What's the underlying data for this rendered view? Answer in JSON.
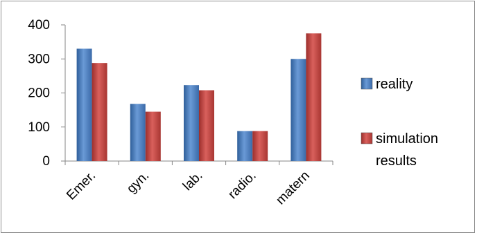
{
  "chart_data": {
    "type": "bar",
    "categories": [
      "Emer.",
      "gyn.",
      "lab.",
      "radio.",
      "matern"
    ],
    "series": [
      {
        "name": "reality",
        "values": [
          330,
          168,
          223,
          88,
          300
        ],
        "color": "#4f81bd"
      },
      {
        "name": "simulation results",
        "values": [
          288,
          145,
          208,
          88,
          375
        ],
        "color": "#c0504d"
      }
    ],
    "legend_lines": [
      [
        "reality"
      ],
      [
        "simulation",
        "results"
      ]
    ],
    "yticks": [
      "0",
      "100",
      "200",
      "300",
      "400"
    ],
    "ylim": [
      0,
      400
    ],
    "title": "",
    "xlabel": "",
    "ylabel": "",
    "grid": false,
    "legend_position": "right"
  }
}
